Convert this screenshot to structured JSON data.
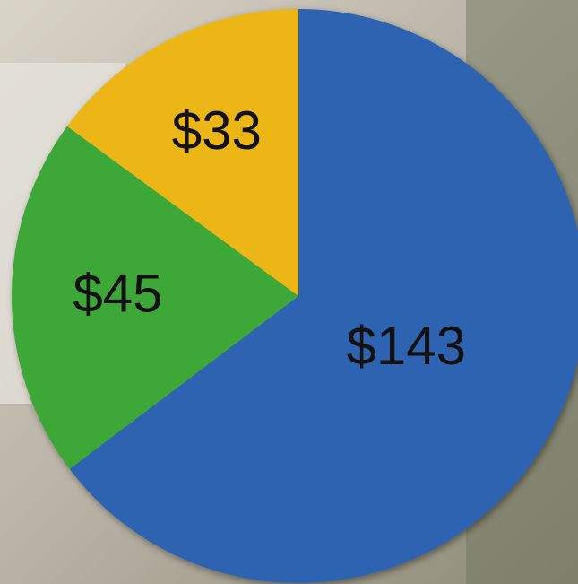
{
  "chart_data": {
    "type": "pie",
    "values": [
      143,
      45,
      33
    ],
    "value_labels": [
      "$143",
      "$45",
      "$33"
    ],
    "colors": [
      "#2f63b2",
      "#3ea737",
      "#ebb619"
    ]
  }
}
